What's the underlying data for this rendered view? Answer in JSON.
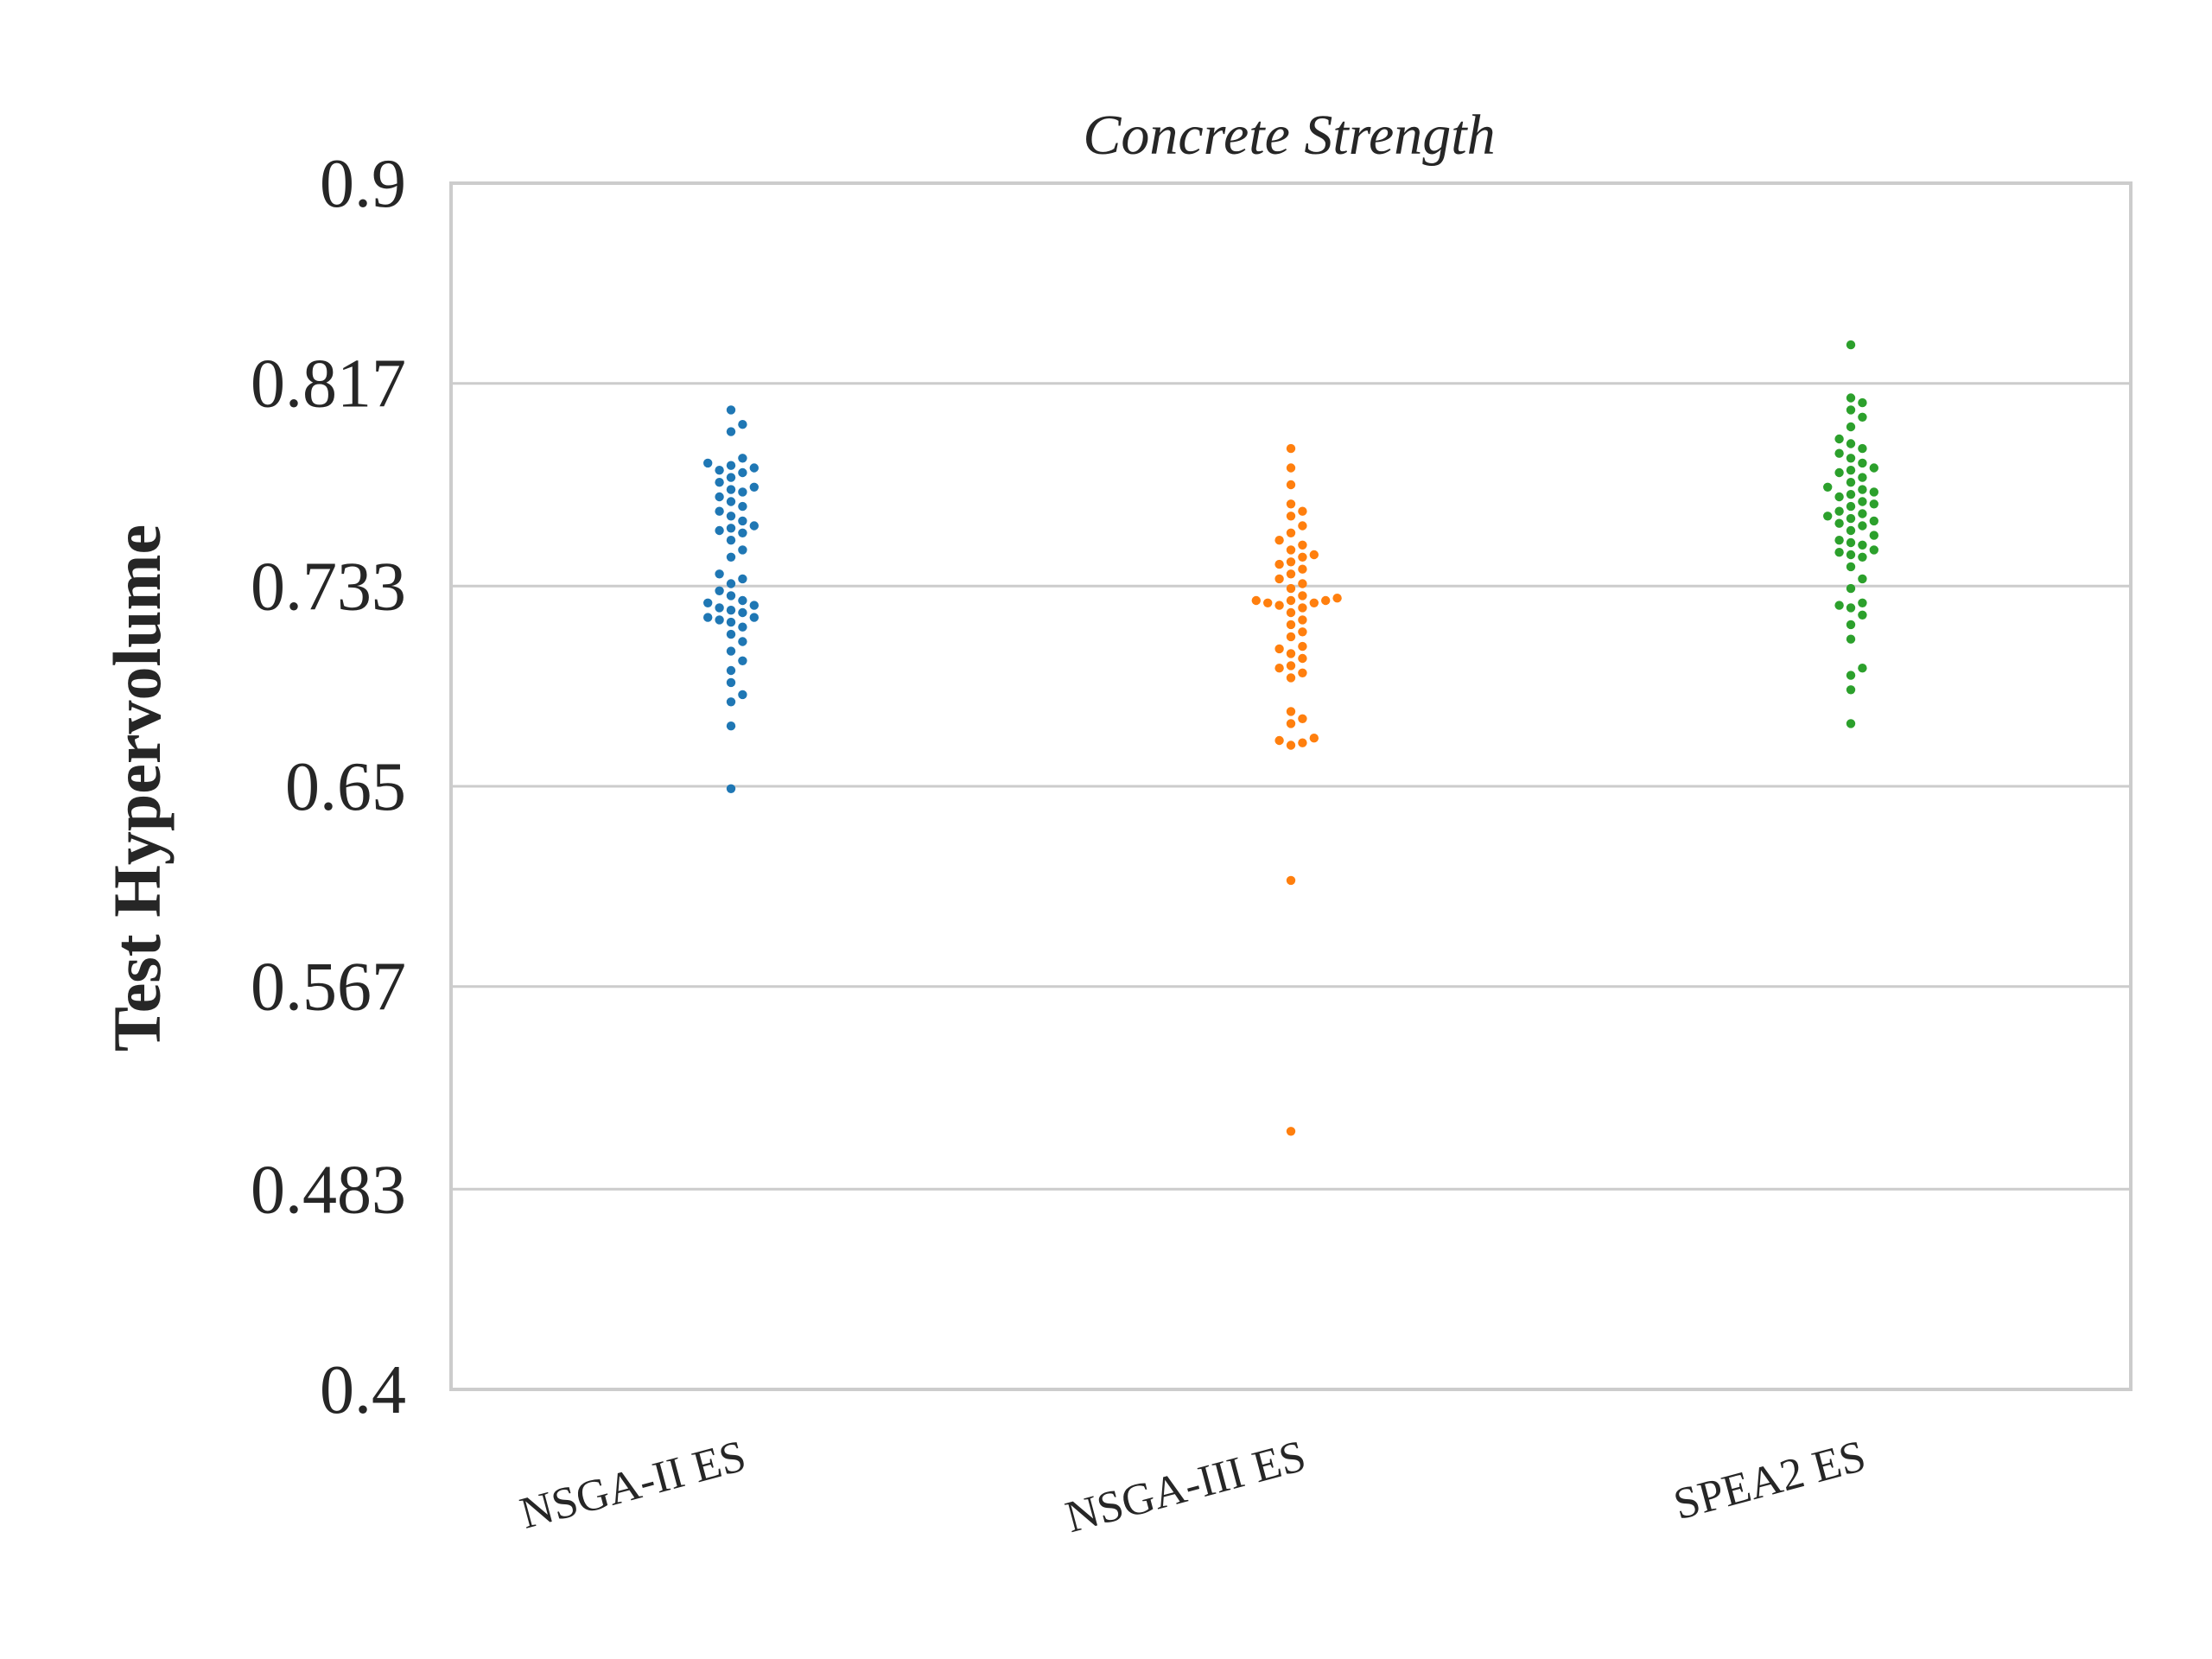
{
  "chart_data": {
    "type": "scatter",
    "subtype": "swarm",
    "title": "Concrete Strength",
    "xlabel": "",
    "ylabel": "Test Hypervolume",
    "ylim": [
      0.4,
      0.9
    ],
    "yticks": [
      "0.4",
      "0.483",
      "0.567",
      "0.65",
      "0.733",
      "0.817",
      "0.9"
    ],
    "grid": true,
    "legend": "none",
    "categories": [
      "NSGA-II ES",
      "NSGA-III ES",
      "SPEA2 ES"
    ],
    "series": [
      {
        "category": "NSGA-II ES",
        "color": "#1f77b4",
        "values": [
          0.649,
          0.675,
          0.685,
          0.688,
          0.693,
          0.698,
          0.702,
          0.706,
          0.71,
          0.713,
          0.716,
          0.718,
          0.719,
          0.72,
          0.72,
          0.722,
          0.723,
          0.724,
          0.725,
          0.726,
          0.727,
          0.729,
          0.731,
          0.734,
          0.736,
          0.738,
          0.745,
          0.748,
          0.752,
          0.755,
          0.756,
          0.757,
          0.758,
          0.76,
          0.762,
          0.764,
          0.766,
          0.768,
          0.77,
          0.772,
          0.773,
          0.774,
          0.776,
          0.778,
          0.78,
          0.781,
          0.782,
          0.783,
          0.784,
          0.786,
          0.797,
          0.8,
          0.806
        ]
      },
      {
        "category": "NSGA-III ES",
        "color": "#ff7f0e",
        "values": [
          0.507,
          0.611,
          0.667,
          0.668,
          0.669,
          0.67,
          0.676,
          0.678,
          0.681,
          0.695,
          0.697,
          0.699,
          0.7,
          0.703,
          0.705,
          0.707,
          0.708,
          0.712,
          0.714,
          0.717,
          0.719,
          0.722,
          0.724,
          0.725,
          0.726,
          0.726,
          0.727,
          0.727,
          0.727,
          0.728,
          0.729,
          0.732,
          0.734,
          0.736,
          0.738,
          0.74,
          0.742,
          0.743,
          0.745,
          0.746,
          0.748,
          0.75,
          0.752,
          0.755,
          0.758,
          0.762,
          0.764,
          0.767,
          0.775,
          0.782,
          0.79
        ]
      },
      {
        "category": "SPEA2 ES",
        "color": "#2ca02c",
        "values": [
          0.676,
          0.69,
          0.696,
          0.699,
          0.711,
          0.717,
          0.721,
          0.724,
          0.725,
          0.726,
          0.732,
          0.736,
          0.741,
          0.745,
          0.746,
          0.747,
          0.748,
          0.75,
          0.751,
          0.752,
          0.754,
          0.756,
          0.758,
          0.759,
          0.76,
          0.761,
          0.762,
          0.763,
          0.764,
          0.766,
          0.767,
          0.768,
          0.77,
          0.771,
          0.772,
          0.773,
          0.774,
          0.776,
          0.778,
          0.78,
          0.781,
          0.782,
          0.784,
          0.786,
          0.788,
          0.79,
          0.792,
          0.794,
          0.799,
          0.803,
          0.806,
          0.809,
          0.811,
          0.833
        ]
      }
    ]
  }
}
